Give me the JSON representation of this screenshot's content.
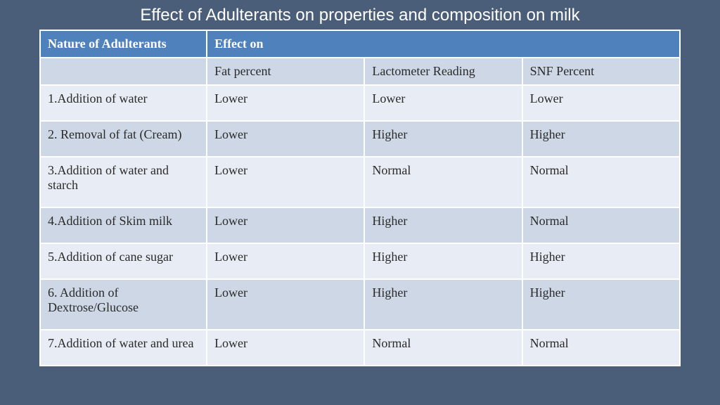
{
  "title": "Effect of Adulterants on properties and composition on milk",
  "table": {
    "type": "table",
    "header": {
      "left": "Nature of Adulterants",
      "right": "Effect on"
    },
    "subcolumns": [
      "Fat percent",
      "Lactometer Reading",
      "SNF Percent"
    ],
    "rows": [
      {
        "label": "1.Addition of water",
        "cells": [
          "Lower",
          "Lower",
          "Lower"
        ]
      },
      {
        "label": "2. Removal of fat (Cream)",
        "cells": [
          "Lower",
          "Higher",
          "Higher"
        ]
      },
      {
        "label": "3.Addition of water and starch",
        "cells": [
          "Lower",
          "Normal",
          "Normal"
        ]
      },
      {
        "label": "4.Addition of Skim milk",
        "cells": [
          "Lower",
          "Higher",
          "Normal"
        ]
      },
      {
        "label": "5.Addition of cane sugar",
        "cells": [
          "Lower",
          "Higher",
          "Higher"
        ]
      },
      {
        "label": "6. Addition of Dextrose/Glucose",
        "cells": [
          "Lower",
          "Higher",
          "Higher"
        ]
      },
      {
        "label": "7.Addition of water and urea",
        "cells": [
          "Lower",
          "Normal",
          "Normal"
        ]
      }
    ],
    "colors": {
      "page_bg": "#4a5e7a",
      "header_bg": "#4f81bd",
      "header_text": "#ffffff",
      "band_light": "#e8ecf4",
      "band_dark": "#ced7e6",
      "border": "#ffffff",
      "title_color": "#ffffff",
      "body_text": "#2a2a2a"
    },
    "typography": {
      "title_font": "Arial",
      "title_size_pt": 18,
      "body_font": "Times New Roman",
      "body_size_pt": 14,
      "header_weight": "bold"
    },
    "column_widths_pct": [
      26,
      24.6,
      24.6,
      24.6
    ]
  }
}
